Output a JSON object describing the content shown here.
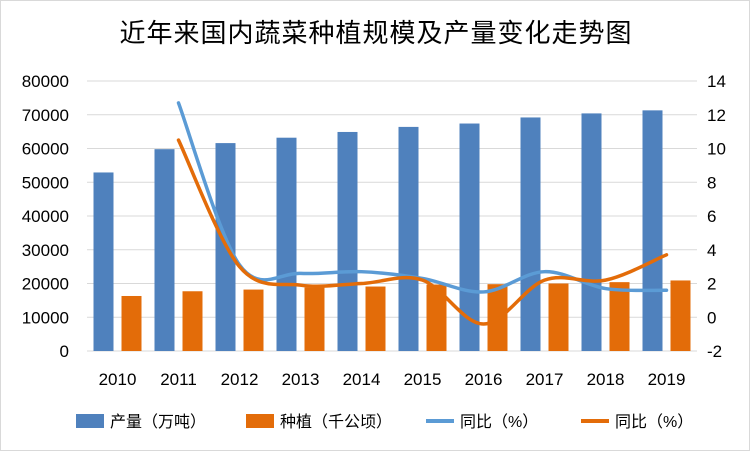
{
  "chart_data": {
    "type": "bar",
    "title": "近年来国内蔬菜种植规模及产量变化走势图",
    "categories": [
      "2010",
      "2011",
      "2012",
      "2013",
      "2014",
      "2015",
      "2016",
      "2017",
      "2018",
      "2019"
    ],
    "series": [
      {
        "name": "产量（万吨）",
        "type": "bar",
        "axis": "left",
        "color": "#4f81bd",
        "values": [
          52900,
          59800,
          61600,
          63200,
          64900,
          66400,
          67400,
          69200,
          70400,
          71300
        ]
      },
      {
        "name": "种植（千公顷）",
        "type": "bar",
        "axis": "left",
        "color": "#e36c09",
        "values": [
          16300,
          17700,
          18200,
          18800,
          19100,
          19700,
          19800,
          20000,
          20400,
          20900
        ]
      },
      {
        "name": "同比（%）",
        "type": "line",
        "axis": "right",
        "color": "#5b9bd5",
        "values": [
          null,
          12.7,
          3.1,
          2.6,
          2.7,
          2.3,
          1.5,
          2.7,
          1.7,
          1.6
        ]
      },
      {
        "name": "同比（%）",
        "type": "line",
        "axis": "right",
        "color": "#e36c09",
        "values": [
          null,
          10.5,
          3.0,
          1.9,
          2.0,
          2.2,
          -0.4,
          2.2,
          2.2,
          3.7
        ]
      }
    ],
    "ylim_left": [
      0,
      80000
    ],
    "yticks_left": [
      "0",
      "10000",
      "20000",
      "30000",
      "40000",
      "50000",
      "60000",
      "70000",
      "80000"
    ],
    "ylim_right": [
      -2,
      14
    ],
    "yticks_right": [
      "-2",
      "0",
      "2",
      "4",
      "6",
      "8",
      "10",
      "12",
      "14"
    ],
    "grid": true,
    "legend_position": "bottom"
  }
}
